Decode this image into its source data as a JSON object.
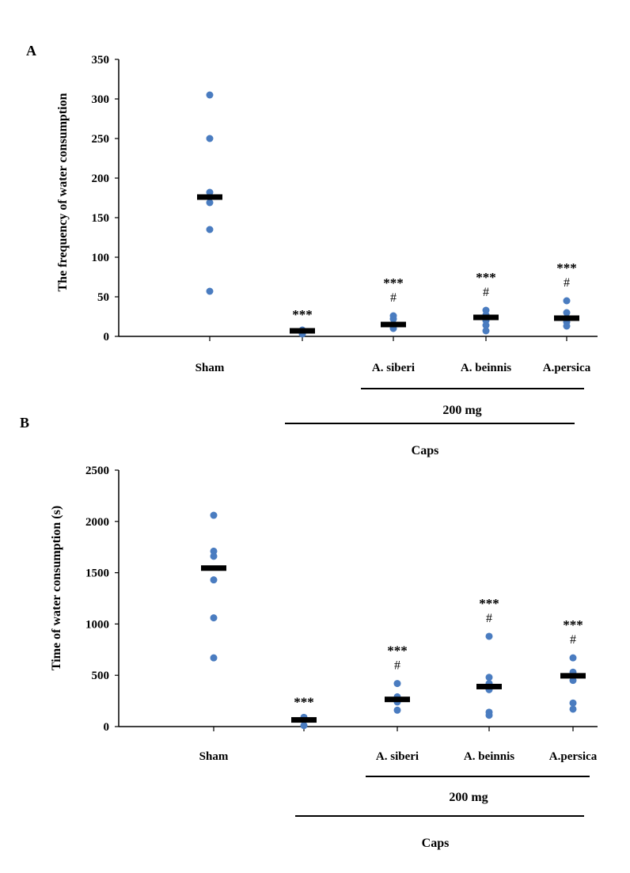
{
  "panels": [
    {
      "label": "A",
      "ylabel": "The frequency of water consumption",
      "group_label": "200 mg",
      "caps_label": "Caps",
      "chart_data": {
        "type": "scatter",
        "ylim": [
          0,
          350
        ],
        "yticks": [
          0,
          50,
          100,
          150,
          200,
          250,
          300,
          350
        ],
        "categories": [
          "Sham",
          "",
          "A. siberi",
          "A. beinnis",
          "A.persica"
        ],
        "points": [
          [
            305,
            250,
            182,
            169,
            135,
            57
          ],
          [
            8,
            6,
            3
          ],
          [
            26,
            22,
            15,
            10
          ],
          [
            33,
            27,
            20,
            14,
            7
          ],
          [
            45,
            30,
            23,
            18,
            13
          ]
        ],
        "means": [
          176,
          7,
          15,
          24,
          23
        ],
        "significance": [
          {
            "stars": "",
            "hash": ""
          },
          {
            "stars": "***",
            "hash": ""
          },
          {
            "stars": "***",
            "hash": "#"
          },
          {
            "stars": "***",
            "hash": "#"
          },
          {
            "stars": "***",
            "hash": "#"
          }
        ],
        "point_color": "#4a7cc0",
        "mean_color": "#000000"
      }
    },
    {
      "label": "B",
      "ylabel": "Time of water consumption  (s)",
      "group_label": "200 mg",
      "caps_label": "Caps",
      "chart_data": {
        "type": "scatter",
        "ylim": [
          0,
          2500
        ],
        "yticks": [
          0,
          500,
          1000,
          1500,
          2000,
          2500
        ],
        "categories": [
          "Sham",
          "",
          "A. siberi",
          "A. beinnis",
          "A.persica"
        ],
        "points": [
          [
            2060,
            1710,
            1660,
            1430,
            1060,
            670
          ],
          [
            90,
            60,
            10
          ],
          [
            420,
            290,
            240,
            160
          ],
          [
            880,
            480,
            420,
            360,
            140,
            110
          ],
          [
            670,
            530,
            450,
            230,
            170
          ]
        ],
        "means": [
          1545,
          65,
          265,
          390,
          495
        ],
        "significance": [
          {
            "stars": "",
            "hash": ""
          },
          {
            "stars": "***",
            "hash": ""
          },
          {
            "stars": "***",
            "hash": "#"
          },
          {
            "stars": "***",
            "hash": "#"
          },
          {
            "stars": "***",
            "hash": "#"
          }
        ],
        "point_color": "#4a7cc0",
        "mean_color": "#000000"
      }
    }
  ]
}
